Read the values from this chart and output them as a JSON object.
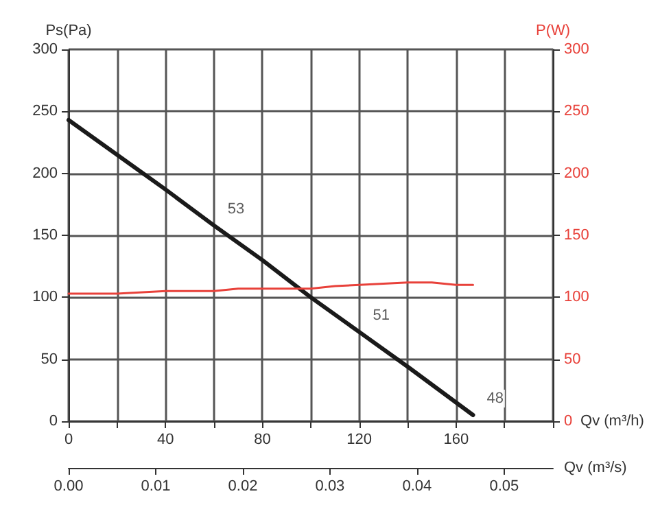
{
  "chart_data": {
    "type": "line",
    "xlabel": "Qv (m³/h)",
    "x2label": "Qv (m³/s)",
    "ylabel": "Ps(Pa)",
    "y2label": "P(W)",
    "xlim": [
      0,
      200
    ],
    "xticks": [
      0,
      {
        "value": 20,
        "label": null
      },
      40,
      {
        "value": 60,
        "label": null
      },
      80,
      {
        "value": 100,
        "label": null
      },
      120,
      {
        "value": 140,
        "label": null
      },
      160,
      {
        "value": 180,
        "label": null
      },
      {
        "value": 200,
        "label": null
      }
    ],
    "x2lim": [
      0,
      0.0556
    ],
    "x2ticks": [
      {
        "value": 0,
        "label": "0.00"
      },
      0.01,
      0.02,
      0.03,
      0.04,
      0.05
    ],
    "ylim": [
      0,
      300
    ],
    "yticks": [
      0,
      50,
      100,
      150,
      200,
      250,
      300
    ],
    "y2lim": [
      0,
      300
    ],
    "y2ticks": [
      0,
      50,
      100,
      150,
      200,
      250,
      300
    ],
    "series": [
      {
        "color": "#1a1a1a",
        "x": [
          0,
          40,
          60,
          80,
          100,
          120,
          140,
          167
        ],
        "values": [
          243,
          187,
          158,
          130,
          100,
          72,
          44,
          5
        ]
      },
      {
        "color": "#e8413a",
        "axis": "y2",
        "x": [
          0,
          20,
          40,
          60,
          70,
          100,
          110,
          120,
          140,
          150,
          160,
          167
        ],
        "values": [
          103,
          103,
          105,
          105,
          107,
          107,
          109,
          110,
          112,
          112,
          110,
          110
        ]
      }
    ],
    "annotations": [
      {
        "text": "53",
        "x": 60,
        "y": 158
      },
      {
        "text": "51",
        "x": 120,
        "y": 72
      },
      {
        "text": "48",
        "x": 167,
        "y": 5
      }
    ],
    "grid": true,
    "marker": "none",
    "line_style": "solid"
  }
}
